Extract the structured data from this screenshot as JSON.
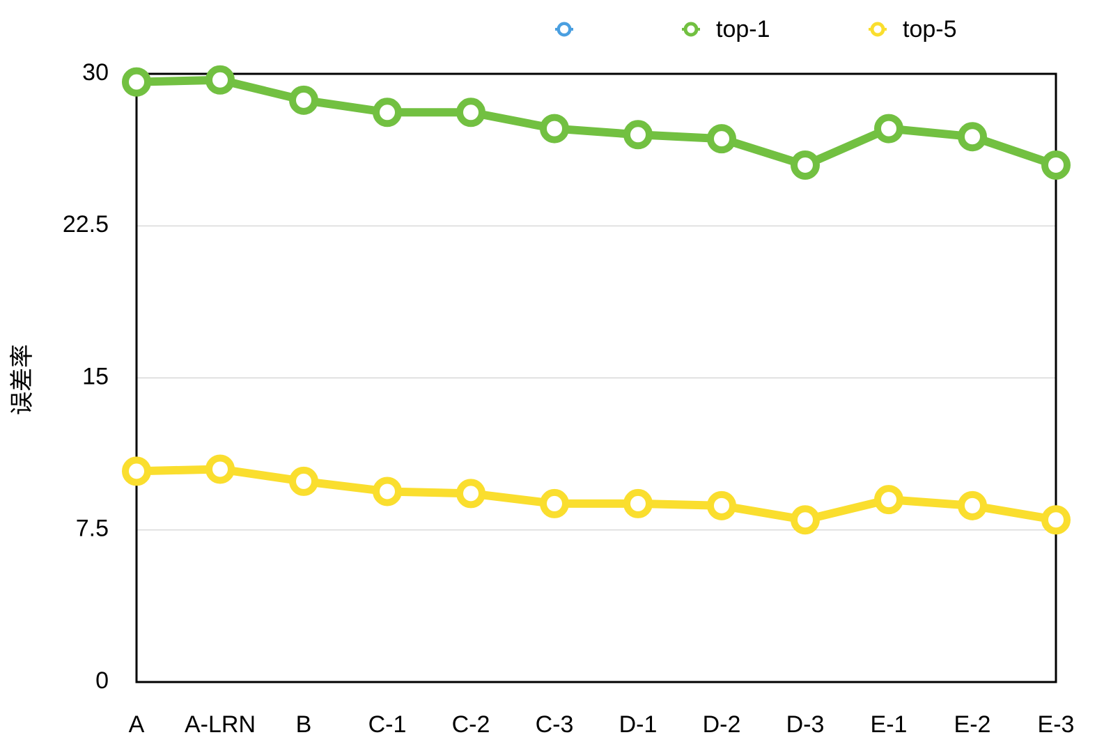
{
  "chart_data": {
    "type": "line",
    "y_label": "误差率",
    "categories": [
      "A",
      "A-LRN",
      "B",
      "C-1",
      "C-2",
      "C-3",
      "D-1",
      "D-2",
      "D-3",
      "E-1",
      "E-2",
      "E-3"
    ],
    "series": [
      {
        "name": "top-1",
        "color": "#72c041",
        "values": [
          29.6,
          29.7,
          28.7,
          28.1,
          28.1,
          27.3,
          27.0,
          26.8,
          25.5,
          27.3,
          26.9,
          25.5
        ]
      },
      {
        "name": "top-5",
        "color": "#fade2e",
        "values": [
          10.4,
          10.5,
          9.9,
          9.4,
          9.3,
          8.8,
          8.8,
          8.7,
          8.0,
          9.0,
          8.7,
          8.0
        ]
      }
    ],
    "ylim": [
      0,
      30
    ],
    "yticks": [
      0,
      7.5,
      15,
      22.5,
      30
    ],
    "grid": true,
    "legend": "top"
  }
}
